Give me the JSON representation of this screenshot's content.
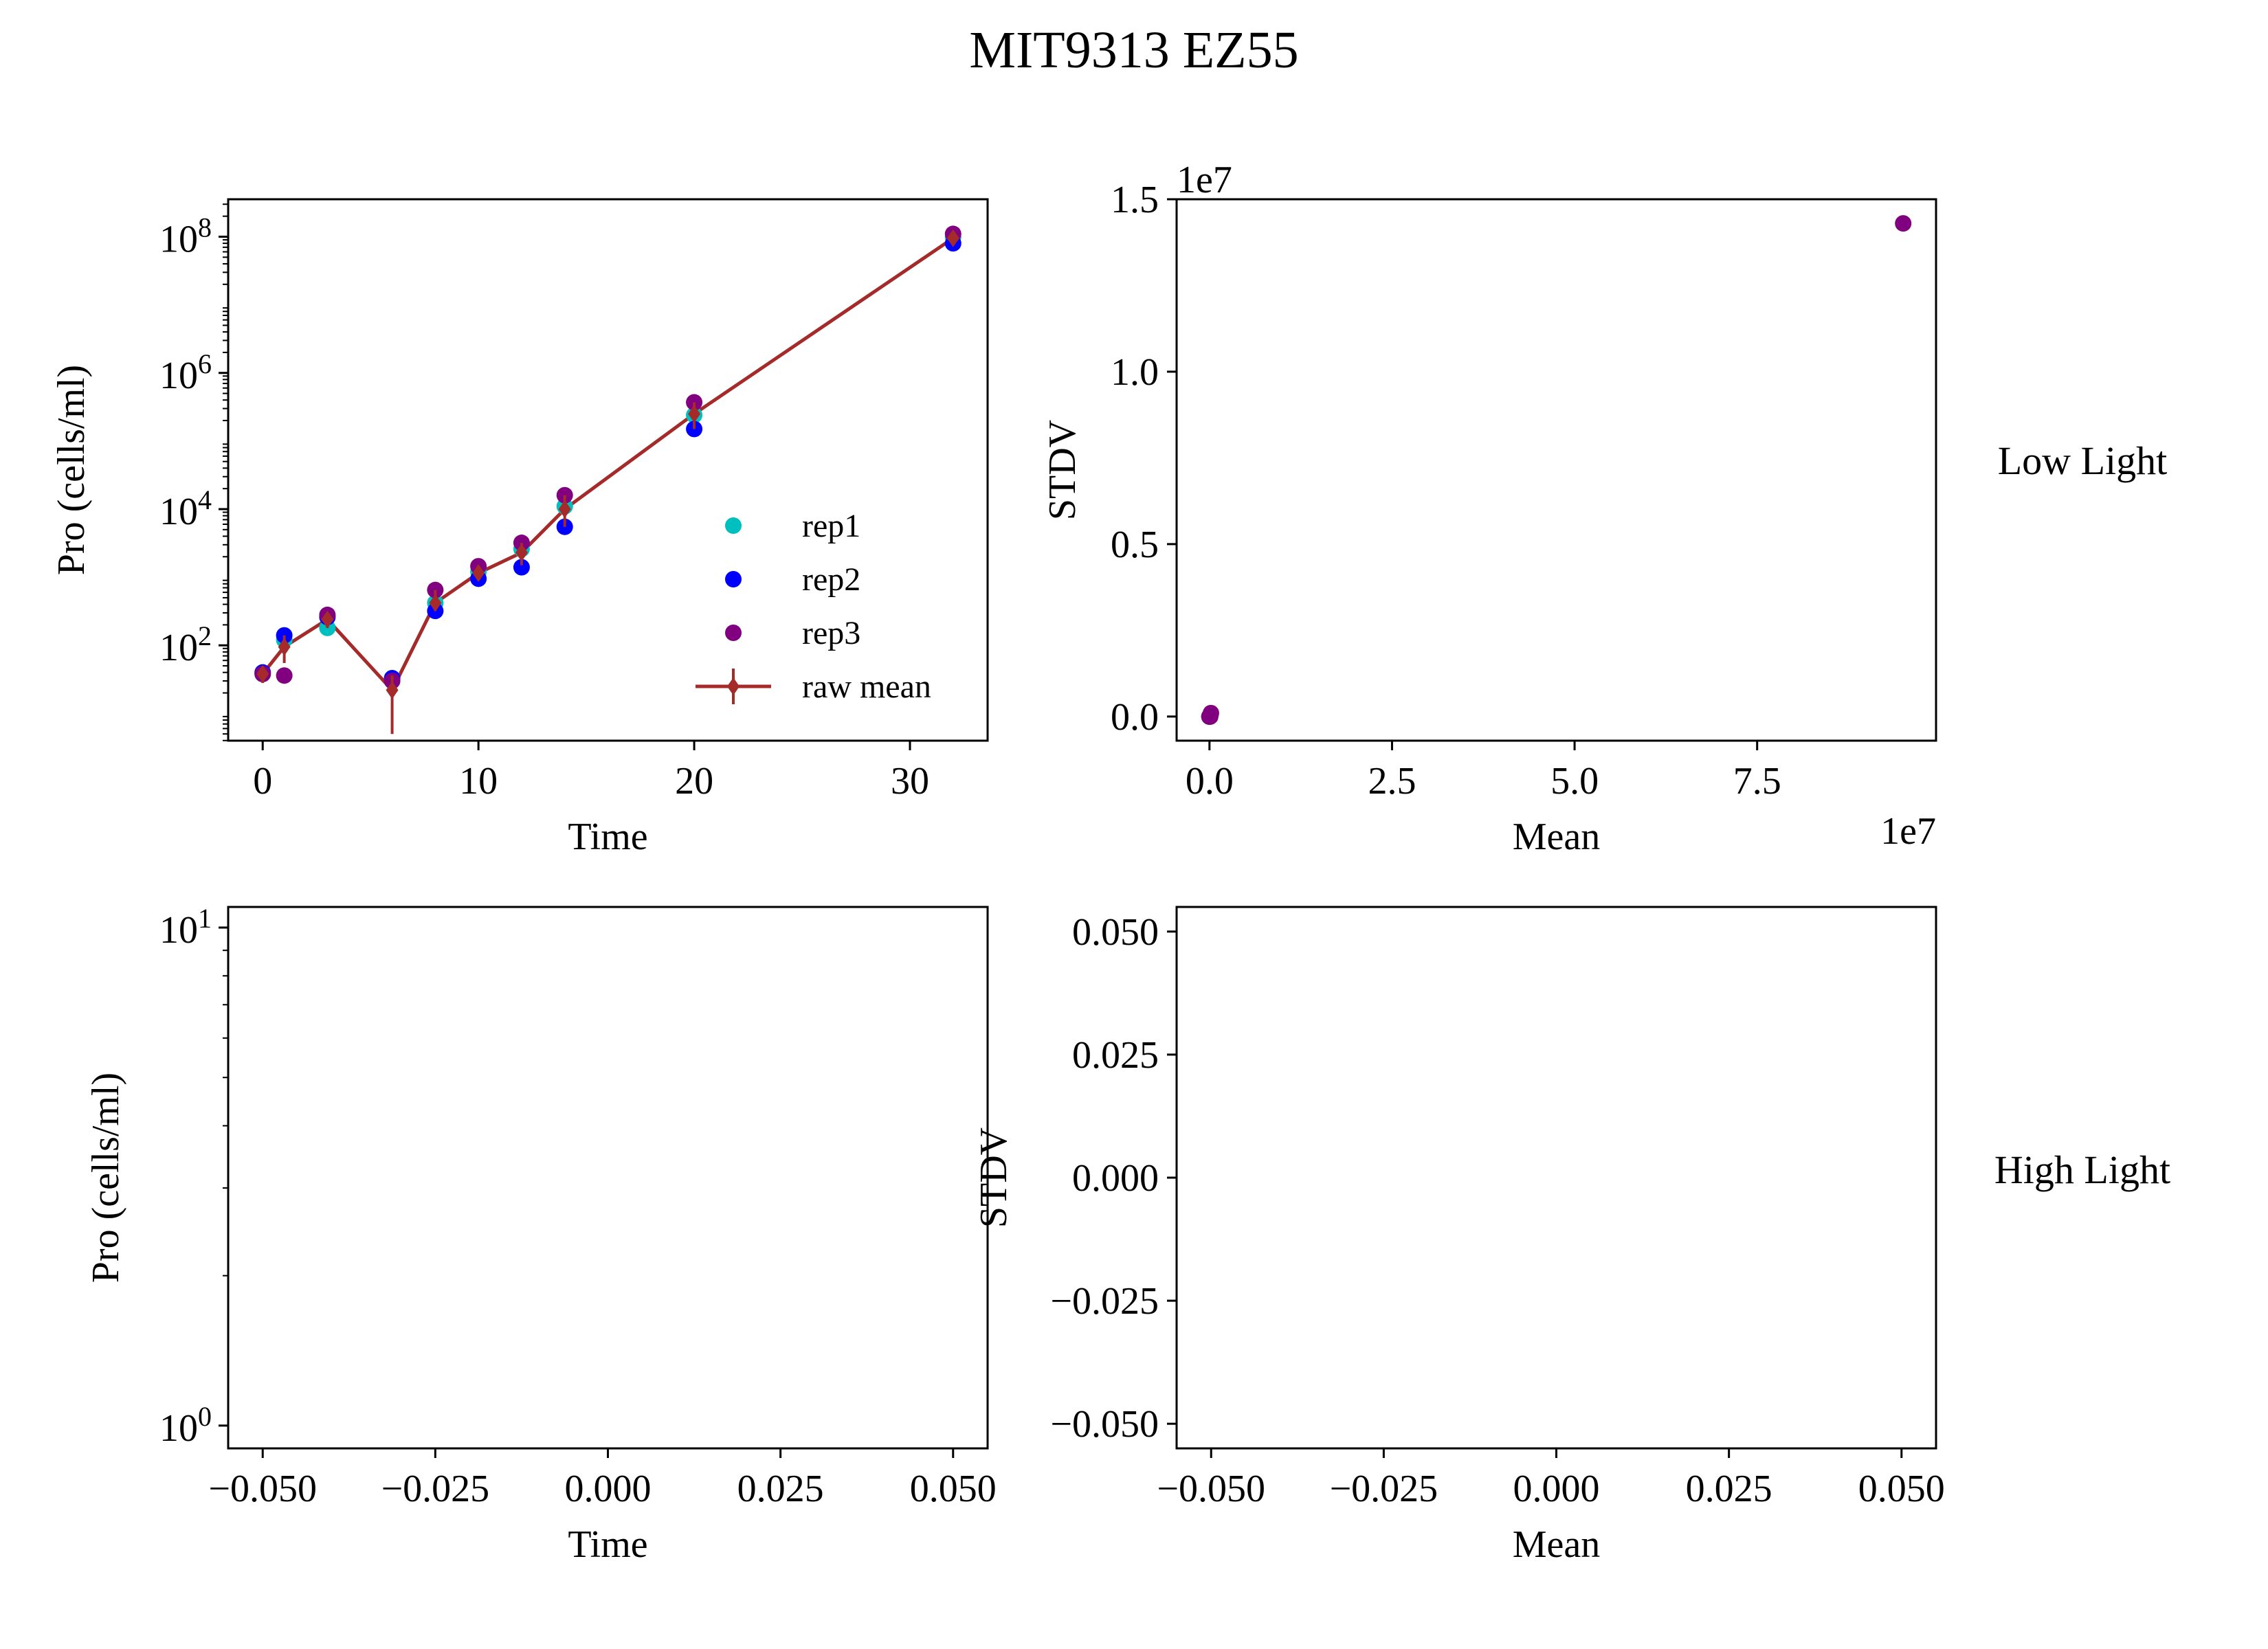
{
  "figure": {
    "title": "MIT9313 EZ55",
    "row_labels": [
      "Low Light",
      "High Light"
    ]
  },
  "colors": {
    "rep1": "#00bfbf",
    "rep2": "#0000ff",
    "rep3": "#800080",
    "raw_mean": "#a52a2a"
  },
  "chart_data": [
    {
      "id": "low-time",
      "type": "scatter",
      "xlabel": "Time",
      "ylabel": "Pro (cells/ml)",
      "yscale": "log",
      "xlim": [
        -1.6,
        33.6
      ],
      "ylim_log10": [
        0.6,
        8.55
      ],
      "xticks": [
        0,
        10,
        20,
        30
      ],
      "xtick_labels": [
        "0",
        "10",
        "20",
        "30"
      ],
      "yticks_log10": [
        2,
        4,
        6,
        8
      ],
      "ytick_base": "10",
      "ytick_exps": [
        "2",
        "4",
        "6",
        "8"
      ],
      "legend": {
        "position": "lower right",
        "entries": [
          "rep1",
          "rep2",
          " rep3",
          "raw mean"
        ]
      },
      "series": [
        {
          "name": "rep1",
          "x": [
            0,
            1,
            3,
            6,
            8,
            10,
            12,
            14,
            20,
            32
          ],
          "y": [
            38,
            120,
            180,
            32,
            420,
            1200,
            2600,
            11000,
            240000,
            100000000
          ]
        },
        {
          "name": "rep2",
          "x": [
            0,
            1,
            3,
            6,
            8,
            10,
            12,
            14,
            20,
            32
          ],
          "y": [
            40,
            140,
            260,
            33,
            320,
            950,
            1400,
            5500,
            150000,
            80000000
          ]
        },
        {
          "name": " rep3",
          "x": [
            0,
            1,
            3,
            6,
            8,
            10,
            12,
            14,
            20,
            32
          ],
          "y": [
            38,
            36,
            280,
            30,
            650,
            1450,
            3200,
            16000,
            370000,
            110000000
          ]
        },
        {
          "name": "raw mean",
          "x": [
            0,
            1,
            3,
            6,
            8,
            10,
            12,
            14,
            20,
            32
          ],
          "y": [
            38,
            95,
            240,
            22,
            420,
            1150,
            2300,
            10000,
            250000,
            95000000
          ],
          "yerr_low": [
            28,
            55,
            180,
            5,
            320,
            950,
            1500,
            5500,
            150000,
            80000000
          ],
          "yerr_high": [
            48,
            140,
            290,
            36,
            650,
            1450,
            3200,
            16000,
            370000,
            110000000
          ]
        }
      ]
    },
    {
      "id": "low-meanstd",
      "type": "scatter",
      "xlabel": "Mean",
      "ylabel": "STDV",
      "xlim": [
        -0.45,
        9.95
      ],
      "ylim": [
        -0.07,
        1.5
      ],
      "xticks": [
        0,
        2.5,
        5,
        7.5
      ],
      "xtick_labels": [
        "0.0",
        "2.5",
        "5.0",
        "7.5"
      ],
      "yticks": [
        0,
        0.5,
        1.0,
        1.5
      ],
      "ytick_labels": [
        "0.0",
        "0.5",
        "1.0",
        "1.5"
      ],
      "x_offset_label": "1e7",
      "y_offset_label": "1e7",
      "series": [
        {
          "name": "",
          "x": [
            0.0,
            0.0,
            0.0,
            0.0,
            0.0,
            0.0,
            0.01,
            0.02,
            9.5
          ],
          "y": [
            0.0,
            0.0,
            0.0,
            0.0,
            0.0,
            0.0,
            0.0,
            0.01,
            1.43
          ]
        }
      ]
    },
    {
      "id": "high-time",
      "type": "scatter",
      "xlabel": "Time",
      "ylabel": "Pro (cells/ml)",
      "yscale": "log",
      "xlim": [
        -0.055,
        0.055
      ],
      "ylim": [
        0.9,
        11
      ],
      "xticks": [
        -0.05,
        -0.025,
        0,
        0.025,
        0.05
      ],
      "xtick_labels": [
        "−0.050",
        "−0.025",
        "0.000",
        "0.025",
        "0.050"
      ],
      "yticks": [
        1,
        10
      ],
      "ytick_base": "10",
      "ytick_exps": [
        "0",
        "1"
      ],
      "series": []
    },
    {
      "id": "high-meanstd",
      "type": "scatter",
      "xlabel": "Mean",
      "ylabel": "STDV",
      "xlim": [
        -0.055,
        0.055
      ],
      "ylim": [
        -0.055,
        0.055
      ],
      "xticks": [
        -0.05,
        -0.025,
        0,
        0.025,
        0.05
      ],
      "xtick_labels": [
        "−0.050",
        "−0.025",
        "0.000",
        "0.025",
        "0.050"
      ],
      "yticks": [
        -0.05,
        -0.025,
        0,
        0.025,
        0.05
      ],
      "ytick_labels": [
        "−0.050",
        "−0.025",
        "0.000",
        "0.025",
        "0.050"
      ],
      "series": []
    }
  ]
}
